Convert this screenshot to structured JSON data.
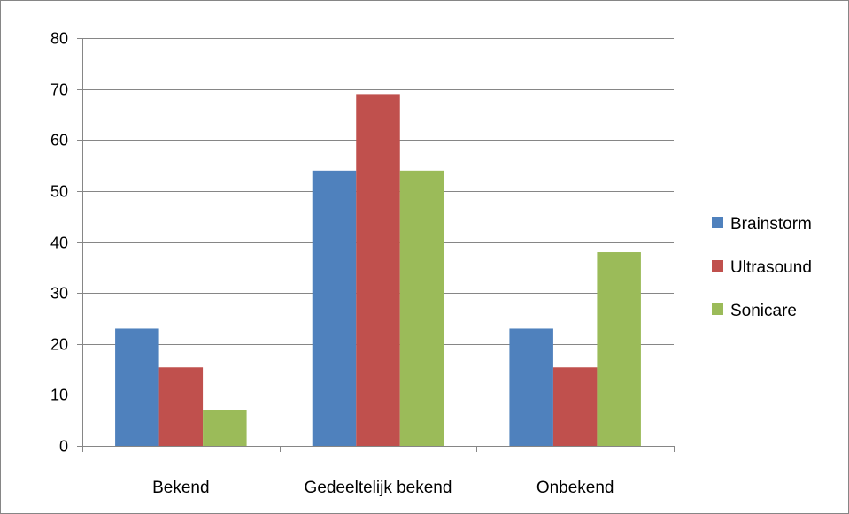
{
  "chart_data": {
    "type": "bar",
    "categories": [
      "Bekend",
      "Gedeeltelijk bekend",
      "Onbekend"
    ],
    "series": [
      {
        "name": "Brainstorm",
        "color": "#4F81BD",
        "values": [
          23,
          54,
          23
        ]
      },
      {
        "name": "Ultrasound",
        "color": "#C0504D",
        "values": [
          15.4,
          69,
          15.4
        ]
      },
      {
        "name": "Sonicare",
        "color": "#9BBB59",
        "values": [
          7,
          54,
          38
        ]
      }
    ],
    "ylim": [
      0,
      80
    ],
    "yticks": [
      0,
      10,
      20,
      30,
      40,
      50,
      60,
      70,
      80
    ],
    "grid": true,
    "legend": "right",
    "title": "",
    "xlabel": "",
    "ylabel": ""
  }
}
